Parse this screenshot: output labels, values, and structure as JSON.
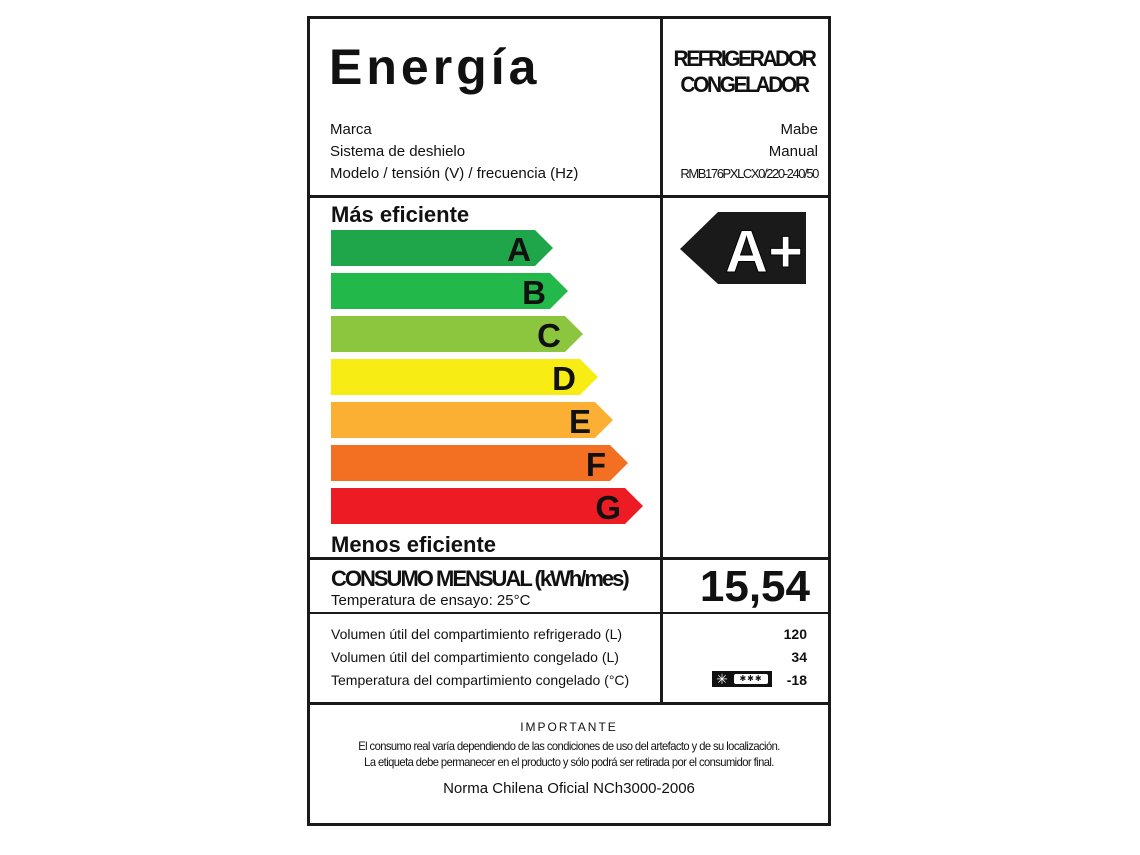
{
  "header": {
    "title": "Energía",
    "category_line1": "REFRIGERADOR",
    "category_line2": "CONGELADOR"
  },
  "specs": [
    {
      "label": "Marca",
      "value": "Mabe"
    },
    {
      "label": "Sistema de deshielo",
      "value": "Manual"
    },
    {
      "label": "Modelo / tensión (V) / frecuencia (Hz)",
      "value": "RMB176PXLCX0/220-240/50"
    }
  ],
  "scale": {
    "top_label": "Más eficiente",
    "bottom_label": "Menos eficiente",
    "classes": [
      {
        "letter": "A",
        "color": "#1fa64a"
      },
      {
        "letter": "B",
        "color": "#22b84a"
      },
      {
        "letter": "C",
        "color": "#8cc63f"
      },
      {
        "letter": "D",
        "color": "#f7ec13"
      },
      {
        "letter": "E",
        "color": "#fbb034"
      },
      {
        "letter": "F",
        "color": "#f36f21"
      },
      {
        "letter": "G",
        "color": "#ed1c24"
      }
    ],
    "rating": "A+",
    "rating_color": "#1a1a1a"
  },
  "consumption": {
    "title": "CONSUMO MENSUAL (kWh/mes)",
    "subtitle": "Temperatura de ensayo: 25°C",
    "value": "15,54"
  },
  "volumes": [
    {
      "label": "Volumen útil del compartimiento refrigerado (L)",
      "value": "120"
    },
    {
      "label": "Volumen útil del compartimiento congelado (L)",
      "value": "34"
    },
    {
      "label": "Temperatura del compartimiento congelado (°C)",
      "value": "-18",
      "icon": "freezer-three-star-icon"
    }
  ],
  "important": {
    "heading": "IMPORTANTE",
    "line1": "El consumo real varía dependiendo de las condiciones de uso del artefacto y de su localización.",
    "line2": "La etiqueta debe permanecer en el producto y sólo podrá ser retirada por el consumidor final.",
    "norma": "Norma Chilena Oficial NCh3000-2006"
  }
}
